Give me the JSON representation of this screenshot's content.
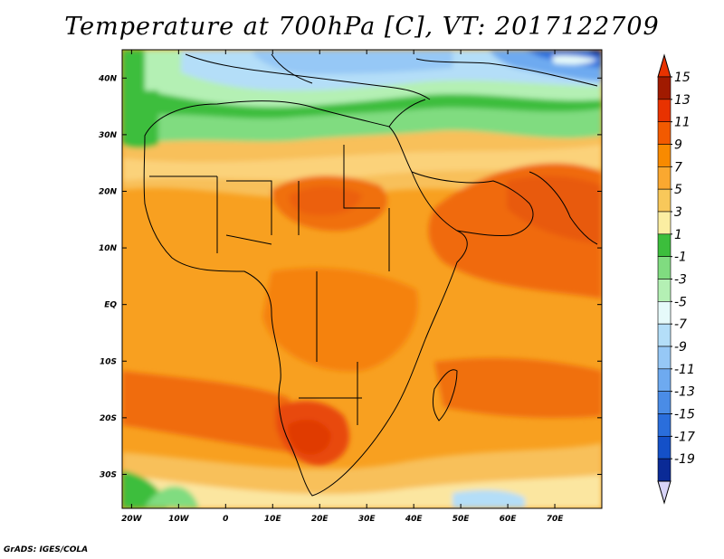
{
  "title": "Temperature at 700hPa [C], VT: 2017122709",
  "credit": "GrADS: IGES/COLA",
  "map": {
    "lon_range": [
      -22,
      80
    ],
    "lat_range": [
      -36,
      45
    ],
    "lon_ticks": [
      {
        "value": -20,
        "label": "20W"
      },
      {
        "value": -10,
        "label": "10W"
      },
      {
        "value": 0,
        "label": "0"
      },
      {
        "value": 10,
        "label": "10E"
      },
      {
        "value": 20,
        "label": "20E"
      },
      {
        "value": 30,
        "label": "30E"
      },
      {
        "value": 40,
        "label": "40E"
      },
      {
        "value": 50,
        "label": "50E"
      },
      {
        "value": 60,
        "label": "60E"
      },
      {
        "value": 70,
        "label": "70E"
      }
    ],
    "lat_ticks": [
      {
        "value": 40,
        "label": "40N"
      },
      {
        "value": 30,
        "label": "30N"
      },
      {
        "value": 20,
        "label": "20N"
      },
      {
        "value": 10,
        "label": "10N"
      },
      {
        "value": 0,
        "label": "EQ"
      },
      {
        "value": -10,
        "label": "10S"
      },
      {
        "value": -20,
        "label": "20S"
      },
      {
        "value": -30,
        "label": "30S"
      }
    ]
  },
  "colorbar": {
    "levels": [
      {
        "label": "15",
        "color": "#a01a00"
      },
      {
        "label": "13",
        "color": "#e83200"
      },
      {
        "label": "11",
        "color": "#f25a00"
      },
      {
        "label": "9",
        "color": "#f88a00"
      },
      {
        "label": "7",
        "color": "#faa830"
      },
      {
        "label": "5",
        "color": "#f8c85a"
      },
      {
        "label": "3",
        "color": "#fbeea2"
      },
      {
        "label": "1",
        "color": "#3cbe3c"
      },
      {
        "label": "-1",
        "color": "#80dc80"
      },
      {
        "label": "-3",
        "color": "#b4f0b4"
      },
      {
        "label": "-5",
        "color": "#e6fafa"
      },
      {
        "label": "-7",
        "color": "#b4def8"
      },
      {
        "label": "-9",
        "color": "#96c8f6"
      },
      {
        "label": "-11",
        "color": "#6eaaf0"
      },
      {
        "label": "-13",
        "color": "#4a8ce6"
      },
      {
        "label": "-15",
        "color": "#2a6edc"
      },
      {
        "label": "-17",
        "color": "#1450c8"
      },
      {
        "label": "-19",
        "color": "#0a2a96"
      }
    ],
    "top_arrow_color": "#e83200",
    "bottom_arrow_color": "#d8d4f8",
    "extra_bands": [
      "#0a1a6e"
    ]
  }
}
